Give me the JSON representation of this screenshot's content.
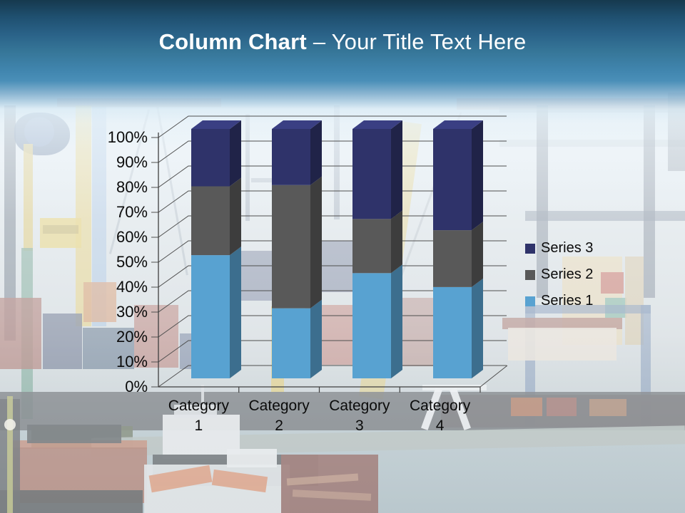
{
  "header": {
    "title_bold": "Column Chart",
    "title_rest": "– Your Title Text Here",
    "text_color": "#ffffff",
    "band_top_color": "#16394e",
    "band_bottom_color": "#4a8fb8"
  },
  "chart_data": {
    "type": "bar",
    "subtype": "100% stacked column, 3-D",
    "title": "",
    "categories": [
      "Category 1",
      "Category 2",
      "Category 3",
      "Category 4"
    ],
    "series": [
      {
        "name": "Series 1",
        "color": "#58a2d1",
        "values": [
          4.3,
          2.5,
          3.5,
          4.5
        ],
        "percent": [
          49.4,
          28.1,
          42.2,
          36.6
        ]
      },
      {
        "name": "Series 2",
        "color": "#595959",
        "values": [
          2.4,
          4.4,
          1.8,
          2.8
        ],
        "percent": [
          27.6,
          49.4,
          21.7,
          22.8
        ]
      },
      {
        "name": "Series 3",
        "color": "#2f336a",
        "values": [
          2.0,
          2.0,
          3.0,
          5.0
        ],
        "percent": [
          23.0,
          22.5,
          36.1,
          40.7
        ]
      }
    ],
    "y_axis": {
      "ticks": [
        "0%",
        "10%",
        "20%",
        "30%",
        "40%",
        "50%",
        "60%",
        "70%",
        "80%",
        "90%",
        "100%"
      ],
      "min": 0,
      "max": 100
    },
    "x_axis_label": "",
    "y_axis_label": "",
    "grid": true,
    "legend_position": "right",
    "legend_order": [
      "Series 3",
      "Series 2",
      "Series 1"
    ]
  }
}
